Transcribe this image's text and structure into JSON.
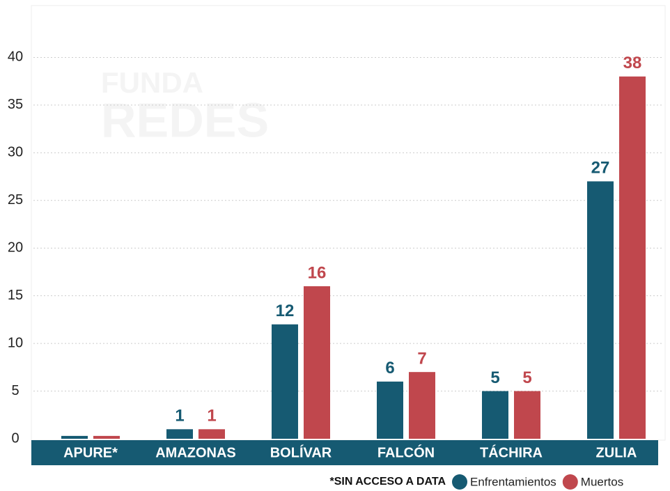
{
  "chart_data": {
    "type": "bar",
    "watermark": [
      "FUNDA",
      "REDES"
    ],
    "categories": [
      "APURE*",
      "AMAZONAS",
      "BOLÍVAR",
      "FALCÓN",
      "TÁCHIRA",
      "ZULIA"
    ],
    "series": [
      {
        "name": "Enfrentamientos",
        "color": "#165a72",
        "values": [
          0.3,
          1,
          12,
          6,
          5,
          27
        ],
        "value_labels": [
          null,
          "1",
          "12",
          "6",
          "5",
          "27"
        ]
      },
      {
        "name": "Muertos",
        "color": "#c0474d",
        "values": [
          0.3,
          1,
          16,
          7,
          5,
          38
        ],
        "value_labels": [
          null,
          "1",
          "16",
          "7",
          "5",
          "38"
        ]
      }
    ],
    "note": "*SIN ACCESO A DATA",
    "ylim": [
      0,
      45
    ],
    "yticks": [
      0,
      5,
      10,
      15,
      20,
      25,
      30,
      35,
      40
    ],
    "grid": true,
    "legend": "bottom-right"
  }
}
